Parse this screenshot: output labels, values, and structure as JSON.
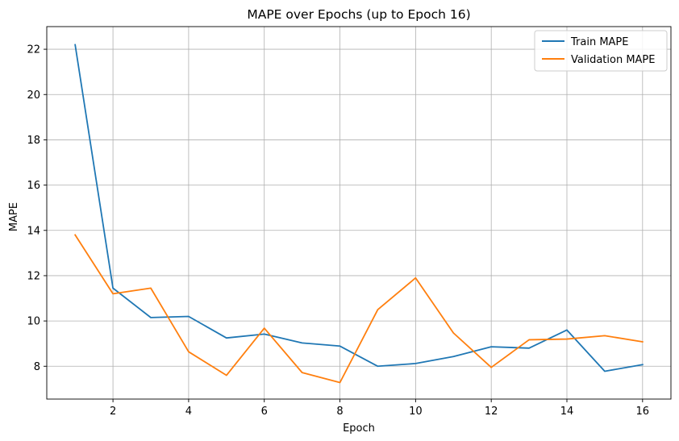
{
  "chart_data": {
    "type": "line",
    "title": "MAPE over Epochs (up to Epoch 16)",
    "xlabel": "Epoch",
    "ylabel": "MAPE",
    "x": [
      1,
      2,
      3,
      4,
      5,
      6,
      7,
      8,
      9,
      10,
      11,
      12,
      13,
      14,
      15,
      16
    ],
    "xticks": [
      2,
      4,
      6,
      8,
      10,
      12,
      14,
      16
    ],
    "yticks": [
      8,
      10,
      12,
      14,
      16,
      18,
      20,
      22
    ],
    "xlim": [
      0.25,
      16.75
    ],
    "ylim": [
      6.55,
      23.0
    ],
    "grid": true,
    "legend_position": "top-right",
    "series": [
      {
        "name": "Train MAPE",
        "color": "#1f77b4",
        "values": [
          22.2,
          11.45,
          10.15,
          10.2,
          9.25,
          9.42,
          9.03,
          8.89,
          8.0,
          8.12,
          8.43,
          8.86,
          8.8,
          9.6,
          7.78,
          8.07
        ]
      },
      {
        "name": "Validation MAPE",
        "color": "#ff7f0e",
        "values": [
          13.8,
          11.2,
          11.45,
          8.64,
          7.6,
          9.68,
          7.72,
          7.28,
          10.5,
          11.9,
          9.47,
          7.95,
          9.17,
          9.2,
          9.35,
          9.08
        ]
      }
    ]
  }
}
